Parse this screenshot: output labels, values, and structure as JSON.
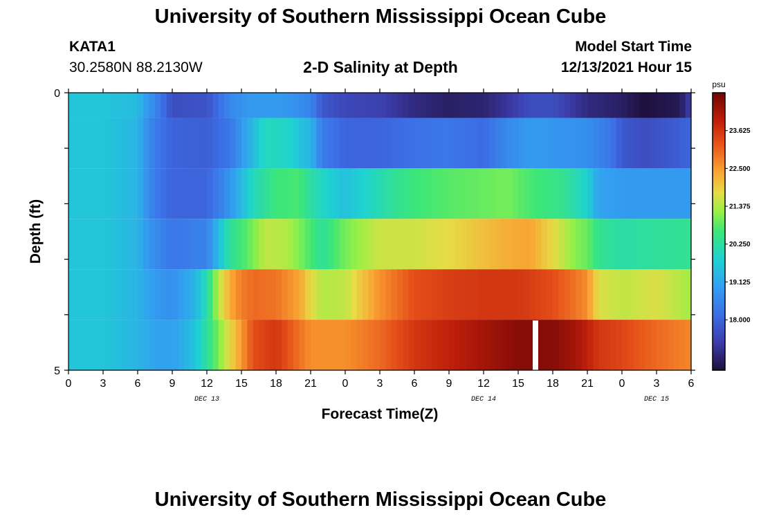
{
  "header": {
    "title": "University of Southern Mississippi Ocean Cube",
    "station": "KATA1",
    "coords": "30.2580N  88.2130W",
    "chart_title": "2-D Salinity at Depth",
    "start_label": "Model Start Time",
    "start_value": "12/13/2021 Hour 15"
  },
  "footer": {
    "title": "University of Southern Mississippi Ocean Cube"
  },
  "chart_data": {
    "type": "heatmap",
    "title": "2-D Salinity at Depth",
    "xlabel": "Forecast Time(Z)",
    "ylabel": "Depth (ft)",
    "x_tick_labels": [
      "0",
      "3",
      "6",
      "9",
      "12",
      "15",
      "18",
      "21",
      "0",
      "3",
      "6",
      "9",
      "12",
      "15",
      "18",
      "21",
      "0",
      "3",
      "6"
    ],
    "x_hours": [
      0,
      3,
      6,
      9,
      12,
      15,
      18,
      21,
      24,
      27,
      30,
      33,
      36,
      39,
      42,
      45,
      48,
      51,
      54
    ],
    "xlim": [
      0,
      54
    ],
    "date_labels": [
      {
        "text": "DEC 13",
        "hour": 12
      },
      {
        "text": "DEC 14",
        "hour": 36
      },
      {
        "text": "DEC 15",
        "hour": 51
      }
    ],
    "y_tick_labels": [
      "0",
      "5"
    ],
    "ylim": [
      0,
      5
    ],
    "depth_layers": [
      0,
      1,
      2,
      3,
      4,
      5
    ],
    "colorbar": {
      "unit": "psu",
      "min": 16.5,
      "max": 24.75,
      "tick_values": [
        18.0,
        19.125,
        20.25,
        21.375,
        22.5,
        23.625
      ],
      "tick_labels": [
        "18.000",
        "19.125",
        "20.250",
        "21.375",
        "22.500",
        "23.625"
      ]
    },
    "missing_data_hour": 40.5,
    "series": [
      {
        "depth": 0,
        "hours": [
          0,
          3,
          6,
          7,
          8,
          9,
          11,
          12,
          14,
          16,
          18,
          20,
          21,
          22,
          24,
          27,
          30,
          33,
          36,
          38,
          40,
          42,
          45,
          48,
          50,
          53,
          54
        ],
        "values": [
          19.6,
          19.6,
          19.4,
          18.8,
          18.3,
          17.6,
          17.7,
          17.7,
          18.6,
          18.9,
          18.9,
          18.7,
          18.5,
          17.8,
          17.5,
          17.4,
          17.0,
          16.8,
          16.9,
          17.2,
          17.6,
          17.6,
          17.0,
          16.8,
          16.5,
          16.7,
          17.4
        ]
      },
      {
        "depth": 1,
        "hours": [
          0,
          3,
          6,
          7,
          8,
          9,
          12,
          14,
          16,
          17,
          19,
          21,
          22,
          24,
          27,
          30,
          33,
          36,
          38,
          40,
          42,
          45,
          47,
          48,
          50,
          54
        ],
        "values": [
          19.6,
          19.6,
          19.3,
          18.6,
          18.2,
          18.0,
          17.9,
          18.3,
          19.4,
          20.0,
          19.9,
          19.3,
          18.4,
          18.0,
          18.0,
          18.2,
          18.3,
          18.1,
          18.6,
          18.9,
          18.8,
          18.7,
          18.3,
          17.8,
          17.6,
          18.0
        ]
      },
      {
        "depth": 2,
        "hours": [
          0,
          3,
          6,
          7,
          8,
          9,
          12,
          14,
          16,
          18,
          20,
          21,
          23,
          24,
          26,
          28,
          30,
          33,
          36,
          38,
          40,
          43,
          45,
          46,
          48,
          54
        ],
        "values": [
          19.6,
          19.6,
          19.3,
          18.6,
          18.2,
          18.0,
          18.0,
          18.8,
          20.0,
          20.6,
          20.7,
          20.2,
          19.7,
          19.5,
          19.9,
          20.3,
          20.6,
          20.8,
          20.9,
          21.0,
          20.7,
          20.4,
          19.8,
          19.0,
          18.9,
          18.9
        ]
      },
      {
        "depth": 3,
        "hours": [
          0,
          3,
          6,
          7,
          8,
          9,
          12,
          13,
          14,
          16,
          17,
          19,
          21,
          22,
          24,
          27,
          30,
          33,
          36,
          38,
          40,
          42,
          44,
          45,
          46,
          48,
          54
        ],
        "values": [
          19.6,
          19.6,
          19.3,
          18.8,
          18.5,
          18.3,
          18.5,
          19.4,
          20.3,
          21.0,
          21.5,
          21.4,
          20.7,
          20.3,
          21.0,
          21.6,
          21.6,
          21.8,
          22.1,
          22.3,
          22.4,
          21.8,
          21.1,
          20.9,
          20.4,
          20.2,
          20.4
        ]
      },
      {
        "depth": 4,
        "hours": [
          0,
          3,
          6,
          7,
          8,
          9,
          11,
          12,
          13,
          14,
          15,
          16,
          18,
          20,
          21,
          22,
          24,
          27,
          30,
          33,
          36,
          39,
          42,
          44,
          45,
          46,
          48,
          51,
          54
        ],
        "values": [
          19.6,
          19.6,
          19.3,
          19.0,
          18.8,
          18.7,
          19.3,
          20.2,
          21.4,
          22.3,
          22.8,
          23.0,
          22.9,
          22.4,
          21.8,
          21.4,
          21.5,
          22.6,
          23.3,
          23.5,
          23.6,
          23.6,
          23.3,
          22.9,
          22.6,
          21.7,
          21.5,
          21.7,
          21.3
        ]
      },
      {
        "depth": 5,
        "hours": [
          0,
          3,
          6,
          7,
          8,
          9,
          10,
          11,
          12,
          13,
          14,
          15,
          16,
          18,
          21,
          24,
          27,
          30,
          33,
          36,
          38,
          39,
          40,
          42,
          44,
          45,
          46,
          48,
          51,
          54
        ],
        "values": [
          19.6,
          19.6,
          19.3,
          19.1,
          19.0,
          19.0,
          19.2,
          19.6,
          20.3,
          21.0,
          21.8,
          22.5,
          23.3,
          23.6,
          22.6,
          22.6,
          23.0,
          23.6,
          23.9,
          24.2,
          24.4,
          24.5,
          24.5,
          24.5,
          24.2,
          23.9,
          23.6,
          23.4,
          23.0,
          22.7
        ]
      }
    ]
  }
}
